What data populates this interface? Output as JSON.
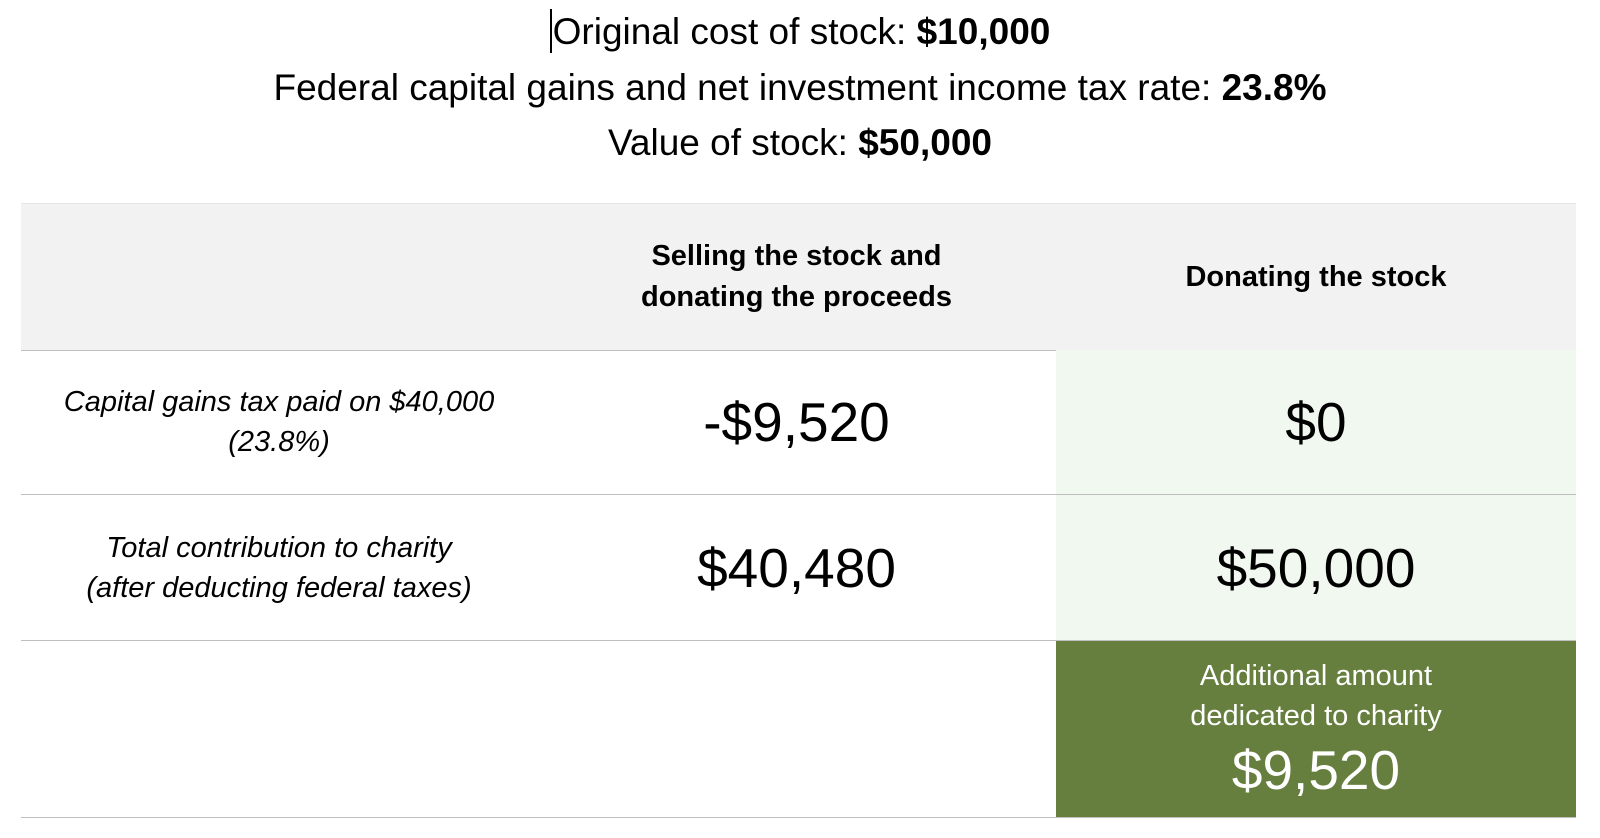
{
  "header": {
    "line1_label": "Original cost of stock: ",
    "line1_value": "$10,000",
    "line2_label": "Federal capital gains and net investment income tax rate: ",
    "line2_value": "23.8%",
    "line3_label": "Value of stock: ",
    "line3_value": "$50,000"
  },
  "table": {
    "columns": [
      [
        "Selling the stock and",
        "donating the proceeds"
      ],
      [
        "Donating the stock"
      ]
    ],
    "rows": [
      {
        "label": [
          "Capital gains tax paid on $40,000",
          "(23.8%)"
        ],
        "selling": "-$9,520",
        "donating": "$0"
      },
      {
        "label": [
          "Total contribution to charity",
          "(after deducting federal taxes)"
        ],
        "selling": "$40,480",
        "donating": "$50,000"
      }
    ],
    "summary": {
      "caption": [
        "Additional amount",
        "dedicated to charity"
      ],
      "value": "$9,520"
    }
  },
  "colors": {
    "header_bg": "#f2f2f2",
    "donate_tint": "#f0f8ef",
    "highlight_bg": "#667e3e",
    "rule": "#bfbfbf"
  }
}
